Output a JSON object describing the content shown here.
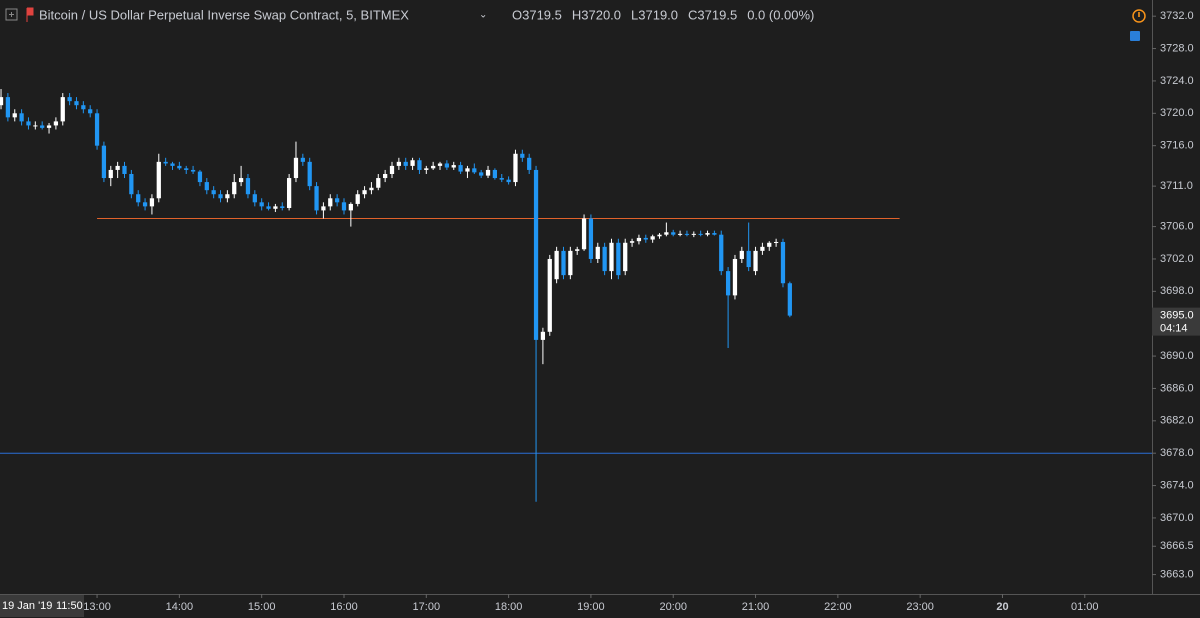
{
  "chart_data": {
    "type": "candlestick",
    "title": "Bitcoin / US Dollar Perpetual Inverse Swap Contract, 5, BITMEX",
    "legend_values": [
      "O3719.5",
      "H3720.0",
      "L3719.0",
      "C3719.5",
      "0.0 (0.00%)"
    ],
    "crosshair_label": [
      "19 Jan '19",
      "11:50"
    ],
    "last_price_label": [
      "3695.0",
      "04:14"
    ],
    "last_price": 3695,
    "up_color": "#ffffff",
    "down_color": "#2196f3",
    "candles": [
      [
        3721,
        3723,
        3720.5,
        3722
      ],
      [
        3722,
        3722.5,
        3719,
        3719.5
      ],
      [
        3719.5,
        3720.5,
        3719,
        3720
      ],
      [
        3720,
        3720.5,
        3718.5,
        3719
      ],
      [
        3719,
        3719.5,
        3718,
        3718.5
      ],
      [
        3718.5,
        3719,
        3718,
        3718.5
      ],
      [
        3718.5,
        3719,
        3718,
        3718.2
      ],
      [
        3718.2,
        3718.8,
        3717.5,
        3718.5
      ],
      [
        3718.5,
        3719.5,
        3718,
        3719
      ],
      [
        3719,
        3722.5,
        3718.5,
        3722
      ],
      [
        3722,
        3722.5,
        3721,
        3721.5
      ],
      [
        3721.5,
        3722,
        3720.5,
        3721
      ],
      [
        3721,
        3721.5,
        3720,
        3720.5
      ],
      [
        3720.5,
        3721,
        3719.5,
        3720
      ],
      [
        3720,
        3720.5,
        3715.5,
        3716
      ],
      [
        3716,
        3716.5,
        3711.5,
        3712
      ],
      [
        3712,
        3713.5,
        3711,
        3713
      ],
      [
        3713,
        3714,
        3712,
        3713.5
      ],
      [
        3713.5,
        3714,
        3712,
        3712.5
      ],
      [
        3712.5,
        3713,
        3709.5,
        3710
      ],
      [
        3710,
        3710.5,
        3708.5,
        3709
      ],
      [
        3709,
        3709.5,
        3708,
        3708.5
      ],
      [
        3708.5,
        3710,
        3707.5,
        3709.5
      ],
      [
        3709.5,
        3715,
        3709,
        3714
      ],
      [
        3714,
        3714.5,
        3713.5,
        3713.8
      ],
      [
        3713.8,
        3714,
        3713,
        3713.5
      ],
      [
        3713.5,
        3714,
        3713,
        3713.2
      ],
      [
        3713.2,
        3713.5,
        3712.5,
        3713
      ],
      [
        3713,
        3713.5,
        3712.5,
        3712.8
      ],
      [
        3712.8,
        3713,
        3711,
        3711.5
      ],
      [
        3711.5,
        3712,
        3710,
        3710.5
      ],
      [
        3710.5,
        3711,
        3709.5,
        3710
      ],
      [
        3710,
        3710.5,
        3709,
        3709.5
      ],
      [
        3709.5,
        3710.5,
        3709,
        3710
      ],
      [
        3710,
        3712.5,
        3709.5,
        3711.5
      ],
      [
        3711.5,
        3713.5,
        3711,
        3712
      ],
      [
        3712,
        3712.5,
        3709.5,
        3710
      ],
      [
        3710,
        3710.5,
        3708.5,
        3709
      ],
      [
        3709,
        3709.5,
        3708,
        3708.5
      ],
      [
        3708.5,
        3709,
        3708,
        3708.2
      ],
      [
        3708.2,
        3708.8,
        3707.8,
        3708.5
      ],
      [
        3708.5,
        3709,
        3708,
        3708.3
      ],
      [
        3708.3,
        3712.5,
        3708,
        3712
      ],
      [
        3712,
        3716.5,
        3711.5,
        3714.5
      ],
      [
        3714.5,
        3715,
        3713.5,
        3714
      ],
      [
        3714,
        3714.5,
        3710.5,
        3711
      ],
      [
        3711,
        3711.5,
        3707.5,
        3708
      ],
      [
        3708,
        3709,
        3707,
        3708.5
      ],
      [
        3708.5,
        3710,
        3708,
        3709.5
      ],
      [
        3709.5,
        3710,
        3708.5,
        3709
      ],
      [
        3709,
        3709.5,
        3707.5,
        3708
      ],
      [
        3708,
        3709,
        3706,
        3708.8
      ],
      [
        3708.8,
        3710.5,
        3708.5,
        3710
      ],
      [
        3710,
        3711,
        3709.5,
        3710.5
      ],
      [
        3710.5,
        3711.5,
        3710,
        3710.8
      ],
      [
        3710.8,
        3712.5,
        3710.5,
        3712
      ],
      [
        3712,
        3713,
        3711.5,
        3712.5
      ],
      [
        3712.5,
        3714,
        3712,
        3713.5
      ],
      [
        3713.5,
        3714.5,
        3713,
        3714
      ],
      [
        3714,
        3714.5,
        3713,
        3713.5
      ],
      [
        3713.5,
        3714.5,
        3713,
        3714.2
      ],
      [
        3714.2,
        3714.5,
        3712.5,
        3713
      ],
      [
        3713,
        3713.5,
        3712.5,
        3713.2
      ],
      [
        3713.2,
        3714,
        3713,
        3713.5
      ],
      [
        3713.5,
        3714,
        3713,
        3713.8
      ],
      [
        3713.8,
        3714.2,
        3713,
        3713.3
      ],
      [
        3713.3,
        3714,
        3713,
        3713.6
      ],
      [
        3713.6,
        3714,
        3712.5,
        3712.8
      ],
      [
        3712.8,
        3713.5,
        3712,
        3713.2
      ],
      [
        3713.2,
        3713.8,
        3712.5,
        3712.7
      ],
      [
        3712.7,
        3713,
        3712,
        3712.3
      ],
      [
        3712.3,
        3713.5,
        3712,
        3713
      ],
      [
        3713,
        3713.2,
        3711.8,
        3712
      ],
      [
        3712,
        3712.5,
        3711.5,
        3711.8
      ],
      [
        3711.8,
        3712.2,
        3711.2,
        3711.5
      ],
      [
        3711.5,
        3715.5,
        3711,
        3715
      ],
      [
        3715,
        3715.5,
        3714,
        3714.5
      ],
      [
        3714.5,
        3715,
        3712.5,
        3713
      ],
      [
        3713,
        3713.5,
        3672,
        3692
      ],
      [
        3692,
        3693.5,
        3689,
        3693
      ],
      [
        3693,
        3702.5,
        3692.5,
        3702
      ],
      [
        3699.5,
        3703.5,
        3699,
        3703
      ],
      [
        3703,
        3703.5,
        3699.5,
        3700
      ],
      [
        3700,
        3703.5,
        3699.5,
        3703
      ],
      [
        3703,
        3703.5,
        3702.5,
        3703.2
      ],
      [
        3703.2,
        3707.5,
        3703,
        3707
      ],
      [
        3707,
        3707.5,
        3701.5,
        3702
      ],
      [
        3702,
        3704,
        3701.5,
        3703.5
      ],
      [
        3703.5,
        3704,
        3700,
        3700.5
      ],
      [
        3700.5,
        3704.5,
        3699.5,
        3704
      ],
      [
        3704,
        3704.5,
        3699.5,
        3700
      ],
      [
        3700.5,
        3704.5,
        3700,
        3704
      ],
      [
        3704,
        3704.5,
        3703.5,
        3704.2
      ],
      [
        3704.2,
        3705,
        3703.8,
        3704.6
      ],
      [
        3704.6,
        3705,
        3704,
        3704.4
      ],
      [
        3704.4,
        3705,
        3704,
        3704.8
      ],
      [
        3704.8,
        3705.2,
        3704.5,
        3705
      ],
      [
        3705,
        3706.5,
        3704.8,
        3705.3
      ],
      [
        3705.3,
        3705.6,
        3704.8,
        3705
      ],
      [
        3705,
        3705.5,
        3704.8,
        3705.1
      ],
      [
        3705.1,
        3705.5,
        3704.8,
        3705
      ],
      [
        3705,
        3705.4,
        3704.7,
        3705.1
      ],
      [
        3705.1,
        3705.5,
        3704.8,
        3705
      ],
      [
        3705,
        3705.5,
        3704.8,
        3705.2
      ],
      [
        3705.2,
        3705.5,
        3704.9,
        3705
      ],
      [
        3705,
        3705.5,
        3700,
        3700.5
      ],
      [
        3700.5,
        3701,
        3691,
        3697.5
      ],
      [
        3697.5,
        3702.5,
        3697,
        3702
      ],
      [
        3702,
        3703.5,
        3701.5,
        3703
      ],
      [
        3703,
        3706.5,
        3700.5,
        3701
      ],
      [
        3700.5,
        3703.5,
        3700,
        3703
      ],
      [
        3703,
        3704,
        3702.5,
        3703.5
      ],
      [
        3703.5,
        3704.2,
        3703,
        3704
      ],
      [
        3704,
        3704.5,
        3703.5,
        3704.1
      ],
      [
        3704.1,
        3704.5,
        3698.5,
        3699
      ],
      [
        3699,
        3699.2,
        3694.8,
        3695
      ]
    ],
    "lines": [
      {
        "value": 3707,
        "color": "#e0622b",
        "from": 14,
        "to": 131
      },
      {
        "value": 3678,
        "color": "#2a6fd6"
      }
    ],
    "xlim": [
      -0.15,
      167.8
    ],
    "xticks": [
      {
        "value": 14,
        "label": "13:00"
      },
      {
        "value": 26,
        "label": "14:00"
      },
      {
        "value": 38,
        "label": "15:00"
      },
      {
        "value": 50,
        "label": "16:00"
      },
      {
        "value": 62,
        "label": "17:00"
      },
      {
        "value": 74,
        "label": "18:00"
      },
      {
        "value": 86,
        "label": "19:00"
      },
      {
        "value": 98,
        "label": "20:00"
      },
      {
        "value": 110,
        "label": "21:00"
      },
      {
        "value": 122,
        "label": "22:00"
      },
      {
        "value": 134,
        "label": "23:00"
      },
      {
        "value": 146,
        "label": "20"
      },
      {
        "value": 158,
        "label": "01:00"
      }
    ],
    "ylim": [
      3660.6,
      3734.0
    ],
    "yticks": [
      {
        "value": 3732,
        "label": "3732.0"
      },
      {
        "value": 3728,
        "label": "3728.0"
      },
      {
        "value": 3724,
        "label": "3724.0"
      },
      {
        "value": 3720,
        "label": "3720.0"
      },
      {
        "value": 3716,
        "label": "3716.0"
      },
      {
        "value": 3711,
        "label": "3711.0"
      },
      {
        "value": 3706,
        "label": "3706.0"
      },
      {
        "value": 3702,
        "label": "3702.0"
      },
      {
        "value": 3698,
        "label": "3698.0"
      },
      {
        "value": 3690,
        "label": "3690.0"
      },
      {
        "value": 3686,
        "label": "3686.0"
      },
      {
        "value": 3682,
        "label": "3682.0"
      },
      {
        "value": 3678,
        "label": "3678.0"
      },
      {
        "value": 3674,
        "label": "3674.0"
      },
      {
        "value": 3670,
        "label": "3670.0"
      },
      3666.5,
      {
        "value": 3663,
        "label": "3663.0"
      }
    ],
    "grid": false
  }
}
